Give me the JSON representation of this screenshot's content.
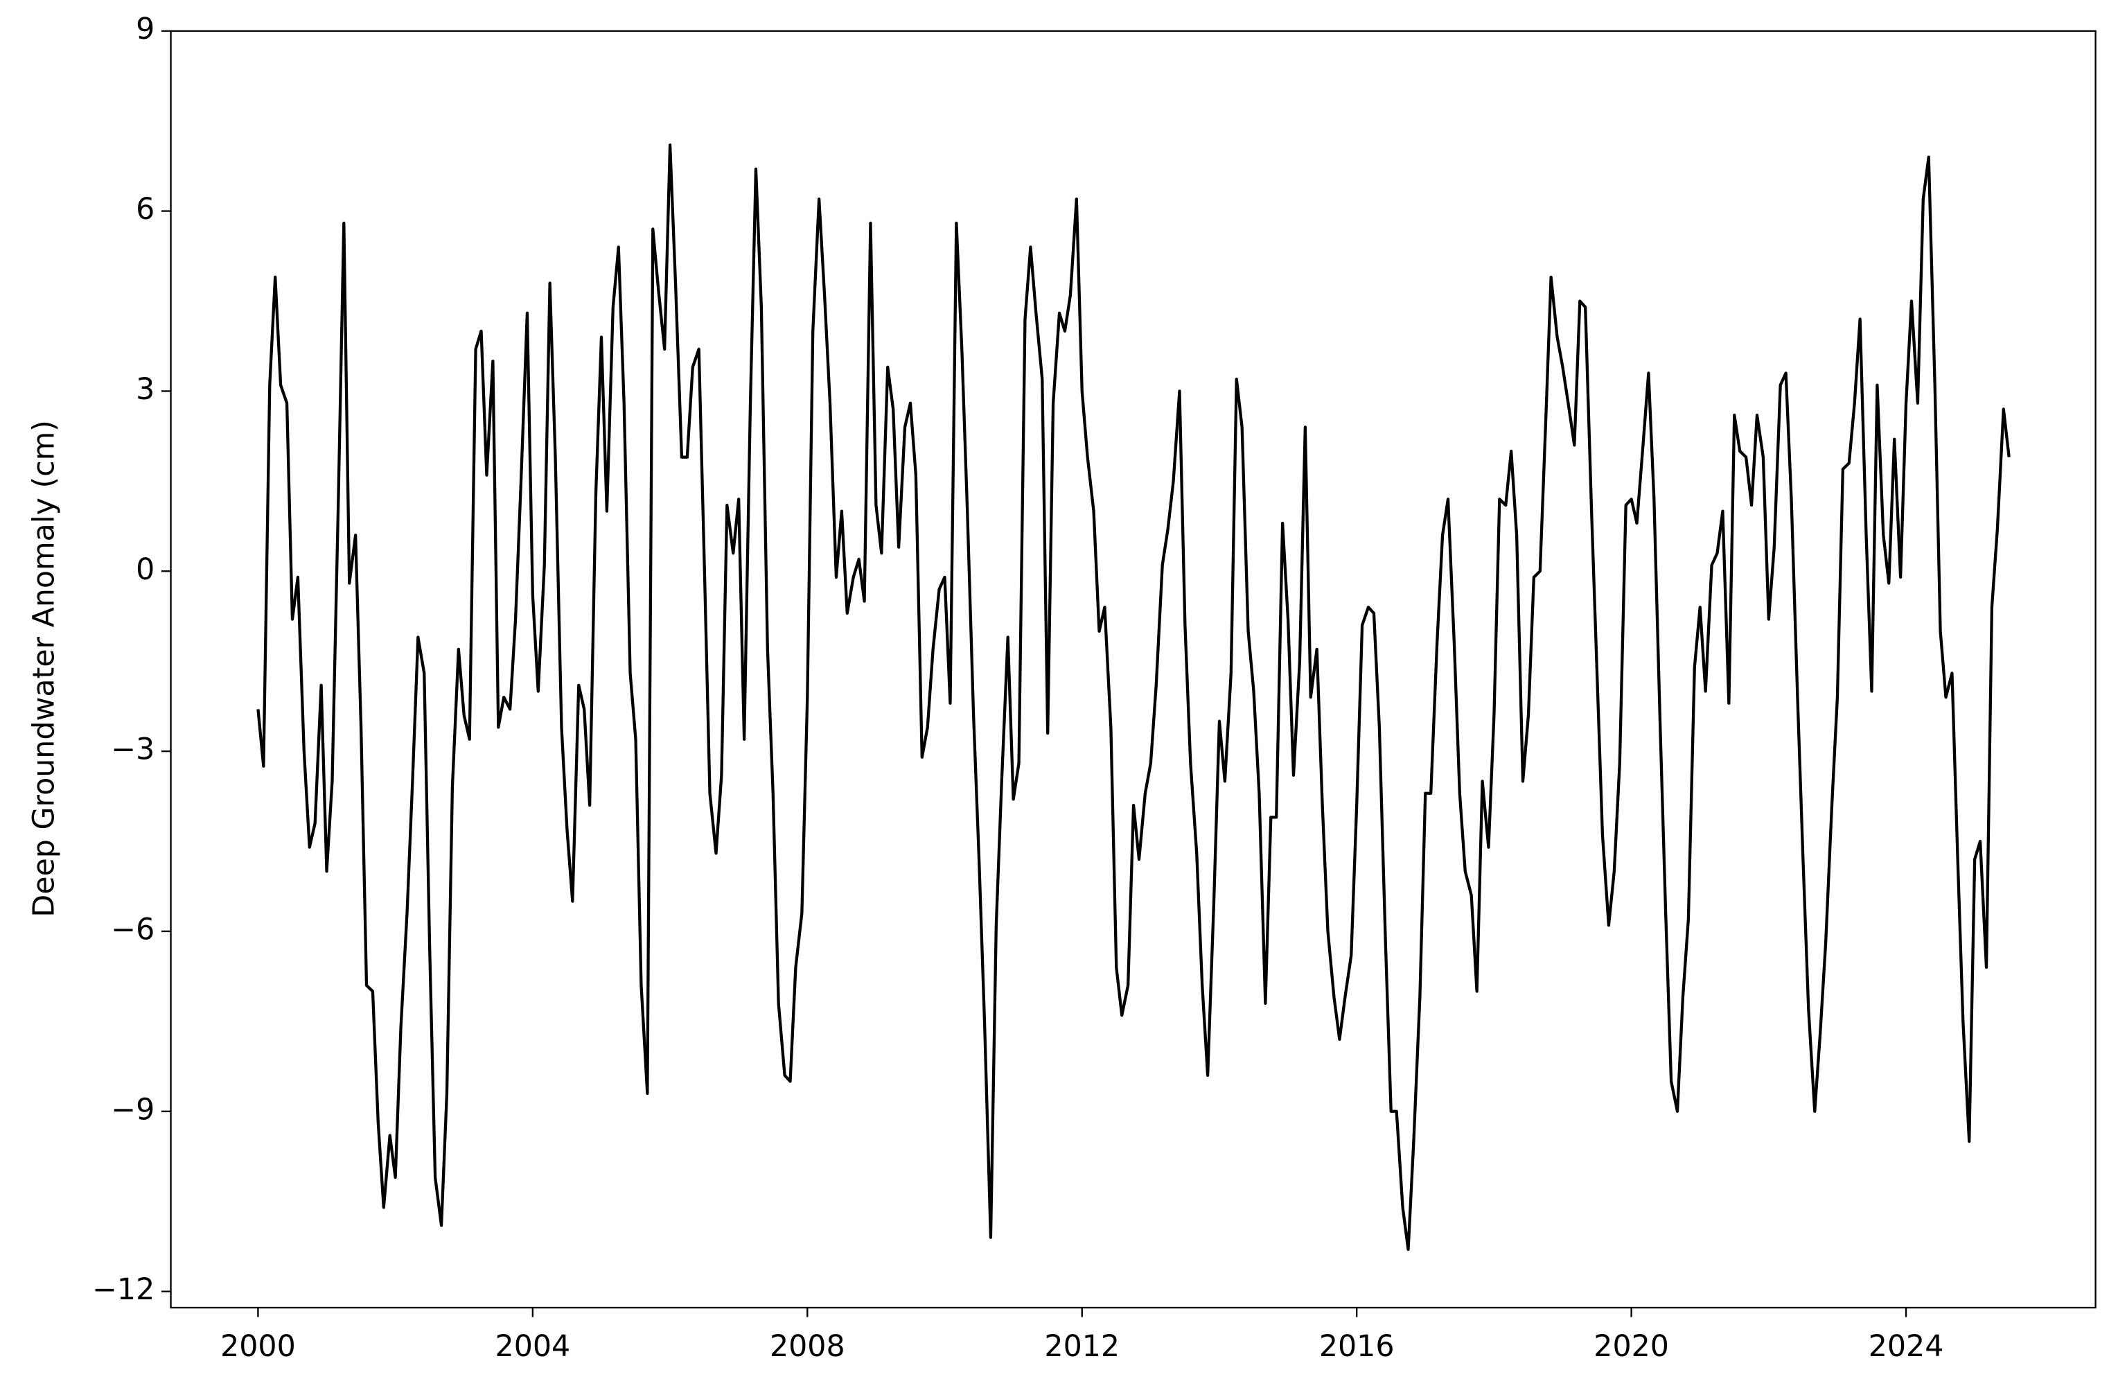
{
  "chart_data": {
    "type": "line",
    "y_label": "Deep Groundwater Anomaly (cm)",
    "xlim": [
      1998.73,
      2026.76
    ],
    "ylim": [
      -12.27,
      9
    ],
    "xticks": [
      2000,
      2004,
      2008,
      2012,
      2016,
      2020,
      2024
    ],
    "yticks": [
      {
        "value": -12,
        "label": "−12"
      },
      {
        "value": -9,
        "label": "−9"
      },
      {
        "value": -6,
        "label": "−6"
      },
      {
        "value": -3,
        "label": "−3"
      },
      0,
      3,
      6,
      9
    ],
    "grid": false,
    "series": [
      {
        "color": "#000000",
        "x": [
          2000,
          2000.08,
          2000.17,
          2000.25,
          2000.33,
          2000.42,
          2000.5,
          2000.58,
          2000.67,
          2000.75,
          2000.83,
          2000.92,
          2001,
          2001.08,
          2001.17,
          2001.25,
          2001.33,
          2001.42,
          2001.5,
          2001.58,
          2001.67,
          2001.75,
          2001.83,
          2001.92,
          2002,
          2002.08,
          2002.17,
          2002.25,
          2002.33,
          2002.42,
          2002.5,
          2002.58,
          2002.67,
          2002.75,
          2002.83,
          2002.92,
          2003,
          2003.08,
          2003.17,
          2003.25,
          2003.33,
          2003.42,
          2003.5,
          2003.58,
          2003.67,
          2003.75,
          2003.83,
          2003.92,
          2004,
          2004.08,
          2004.17,
          2004.25,
          2004.33,
          2004.42,
          2004.5,
          2004.58,
          2004.67,
          2004.75,
          2004.83,
          2004.92,
          2005,
          2005.08,
          2005.17,
          2005.25,
          2005.33,
          2005.42,
          2005.5,
          2005.58,
          2005.67,
          2005.75,
          2005.83,
          2005.92,
          2006,
          2006.08,
          2006.17,
          2006.25,
          2006.33,
          2006.42,
          2006.5,
          2006.58,
          2006.67,
          2006.75,
          2006.83,
          2006.92,
          2007,
          2007.08,
          2007.17,
          2007.25,
          2007.33,
          2007.42,
          2007.5,
          2007.58,
          2007.67,
          2007.75,
          2007.83,
          2007.92,
          2008,
          2008.08,
          2008.17,
          2008.25,
          2008.33,
          2008.42,
          2008.5,
          2008.58,
          2008.67,
          2008.75,
          2008.83,
          2008.92,
          2009,
          2009.08,
          2009.17,
          2009.25,
          2009.33,
          2009.42,
          2009.5,
          2009.58,
          2009.67,
          2009.75,
          2009.83,
          2009.92,
          2010,
          2010.08,
          2010.17,
          2010.25,
          2010.33,
          2010.42,
          2010.5,
          2010.58,
          2010.67,
          2010.75,
          2010.83,
          2010.92,
          2011,
          2011.08,
          2011.17,
          2011.25,
          2011.33,
          2011.42,
          2011.5,
          2011.58,
          2011.67,
          2011.75,
          2011.83,
          2011.92,
          2012,
          2012.08,
          2012.17,
          2012.25,
          2012.33,
          2012.42,
          2012.5,
          2012.58,
          2012.67,
          2012.75,
          2012.83,
          2012.92,
          2013,
          2013.08,
          2013.17,
          2013.25,
          2013.33,
          2013.42,
          2013.5,
          2013.58,
          2013.67,
          2013.75,
          2013.83,
          2013.92,
          2014,
          2014.08,
          2014.17,
          2014.25,
          2014.33,
          2014.42,
          2014.5,
          2014.58,
          2014.67,
          2014.75,
          2014.83,
          2014.92,
          2015,
          2015.08,
          2015.17,
          2015.25,
          2015.33,
          2015.42,
          2015.5,
          2015.58,
          2015.67,
          2015.75,
          2015.83,
          2015.92,
          2016,
          2016.08,
          2016.17,
          2016.25,
          2016.33,
          2016.42,
          2016.5,
          2016.58,
          2016.67,
          2016.75,
          2016.83,
          2016.92,
          2017,
          2017.08,
          2017.17,
          2017.25,
          2017.33,
          2017.42,
          2017.5,
          2017.58,
          2017.67,
          2017.75,
          2017.83,
          2017.92,
          2018,
          2018.08,
          2018.17,
          2018.25,
          2018.33,
          2018.42,
          2018.5,
          2018.58,
          2018.67,
          2018.75,
          2018.83,
          2018.92,
          2019,
          2019.08,
          2019.17,
          2019.25,
          2019.33,
          2019.42,
          2019.5,
          2019.58,
          2019.67,
          2019.75,
          2019.83,
          2019.92,
          2020,
          2020.08,
          2020.17,
          2020.25,
          2020.33,
          2020.42,
          2020.5,
          2020.58,
          2020.67,
          2020.75,
          2020.83,
          2020.92,
          2021,
          2021.08,
          2021.17,
          2021.25,
          2021.33,
          2021.42,
          2021.5,
          2021.58,
          2021.67,
          2021.75,
          2021.83,
          2021.92,
          2022,
          2022.08,
          2022.17,
          2022.25,
          2022.33,
          2022.42,
          2022.5,
          2022.58,
          2022.67,
          2022.75,
          2022.83,
          2022.92,
          2023,
          2023.08,
          2023.17,
          2023.25,
          2023.33,
          2023.42,
          2023.5,
          2023.58,
          2023.67,
          2023.75,
          2023.83,
          2023.92,
          2024,
          2024.08,
          2024.17,
          2024.25,
          2024.33,
          2024.42,
          2024.5,
          2024.58,
          2024.67,
          2024.75,
          2024.83,
          2024.92,
          2025,
          2025.08,
          2025.17,
          2025.25,
          2025.33,
          2025.42,
          2025.5
        ],
        "values": [
          -2.3,
          -3.25,
          3.1,
          4.9,
          3.1,
          2.8,
          -0.8,
          -0.1,
          -3.0,
          -4.6,
          -4.2,
          -1.9,
          -5.0,
          -3.5,
          1.2,
          5.8,
          -0.2,
          0.6,
          -2.6,
          -6.9,
          -7.0,
          -9.2,
          -10.6,
          -9.4,
          -10.1,
          -7.6,
          -5.7,
          -3.5,
          -1.1,
          -1.7,
          -6.3,
          -10.1,
          -10.9,
          -8.7,
          -3.6,
          -1.3,
          -2.4,
          -2.8,
          3.7,
          4.0,
          1.6,
          3.5,
          -2.6,
          -2.1,
          -2.3,
          -0.8,
          1.5,
          4.3,
          -0.4,
          -2.0,
          0.1,
          4.8,
          1.9,
          -2.6,
          -4.3,
          -5.5,
          -1.9,
          -2.3,
          -3.9,
          1.3,
          3.9,
          1.0,
          4.4,
          5.4,
          2.8,
          -1.7,
          -2.8,
          -6.9,
          -8.7,
          5.7,
          4.7,
          3.7,
          7.1,
          4.8,
          1.9,
          1.9,
          3.4,
          3.7,
          0.1,
          -3.7,
          -4.7,
          -3.4,
          1.1,
          0.3,
          1.2,
          -2.8,
          2.8,
          6.7,
          4.4,
          -1.3,
          -3.7,
          -7.2,
          -8.4,
          -8.5,
          -6.6,
          -5.7,
          -2.1,
          4.0,
          6.2,
          4.6,
          2.8,
          -0.1,
          1.0,
          -0.7,
          -0.1,
          0.2,
          -0.5,
          5.8,
          1.1,
          0.3,
          3.4,
          2.7,
          0.4,
          2.4,
          2.8,
          1.6,
          -3.1,
          -2.6,
          -1.3,
          -0.3,
          -0.1,
          -2.2,
          5.8,
          3.7,
          1.0,
          -2.4,
          -4.8,
          -7.5,
          -11.1,
          -5.9,
          -3.5,
          -1.1,
          -3.8,
          -3.2,
          4.2,
          5.4,
          4.3,
          3.2,
          -2.7,
          2.8,
          4.3,
          4.0,
          4.6,
          6.2,
          3.0,
          1.9,
          1.0,
          -1.0,
          -0.6,
          -2.6,
          -6.6,
          -7.4,
          -6.9,
          -3.9,
          -4.8,
          -3.7,
          -3.2,
          -1.9,
          0.1,
          0.7,
          1.5,
          3.0,
          -0.9,
          -3.2,
          -4.7,
          -6.9,
          -8.4,
          -5.5,
          -2.5,
          -3.5,
          -1.7,
          3.2,
          2.4,
          -1.0,
          -2.0,
          -3.7,
          -7.2,
          -4.1,
          -4.1,
          0.8,
          -0.8,
          -3.4,
          -1.5,
          2.4,
          -2.1,
          -1.3,
          -3.9,
          -6.0,
          -7.1,
          -7.8,
          -7.1,
          -6.4,
          -3.9,
          -0.9,
          -0.6,
          -0.7,
          -2.6,
          -6.2,
          -9.0,
          -9.0,
          -10.6,
          -11.3,
          -9.5,
          -7.1,
          -3.7,
          -3.7,
          -1.2,
          0.6,
          1.2,
          -1.2,
          -3.7,
          -5.0,
          -5.4,
          -7.0,
          -3.5,
          -4.6,
          -2.4,
          1.2,
          1.1,
          2.0,
          0.6,
          -3.5,
          -2.4,
          -0.1,
          0.0,
          2.4,
          4.9,
          3.9,
          3.4,
          2.8,
          2.1,
          4.5,
          4.4,
          1.0,
          -1.7,
          -4.4,
          -5.9,
          -5.0,
          -3.2,
          1.1,
          1.2,
          0.8,
          2.1,
          3.3,
          1.2,
          -2.6,
          -5.7,
          -8.5,
          -9.0,
          -7.1,
          -5.8,
          -1.6,
          -0.6,
          -2.0,
          0.1,
          0.3,
          1.0,
          -2.2,
          2.6,
          2.0,
          1.9,
          1.1,
          2.6,
          1.9,
          -0.8,
          0.4,
          3.1,
          3.3,
          1.2,
          -2.1,
          -4.8,
          -7.3,
          -9.0,
          -7.7,
          -6.2,
          -3.9,
          -2.1,
          1.7,
          1.8,
          2.8,
          4.2,
          0.6,
          -2.0,
          3.1,
          0.6,
          -0.2,
          2.2,
          -0.1,
          2.8,
          4.5,
          2.8,
          6.2,
          6.9,
          3.1,
          -1.0,
          -2.1,
          -1.7,
          -4.7,
          -7.5,
          -9.5,
          -4.8,
          -4.5,
          -6.6,
          -0.6,
          0.7,
          2.7,
          1.9
        ]
      }
    ]
  }
}
